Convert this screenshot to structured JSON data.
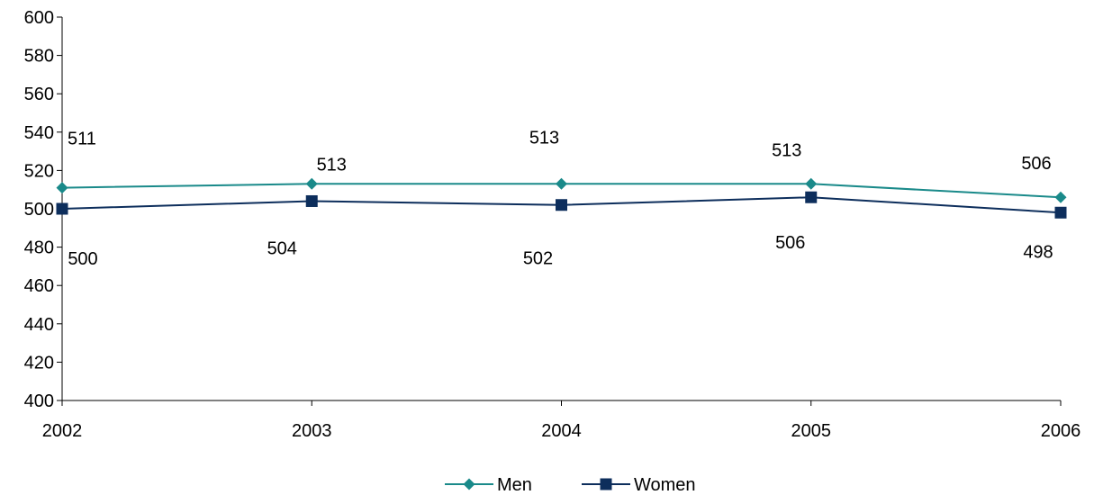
{
  "chart_data": {
    "type": "line",
    "title": "",
    "xlabel": "",
    "ylabel": "",
    "x": [
      "2002",
      "2003",
      "2004",
      "2005",
      "2006"
    ],
    "ylim": [
      400,
      600
    ],
    "yticks": [
      400,
      420,
      440,
      460,
      480,
      500,
      520,
      540,
      560,
      580,
      600
    ],
    "grid": false,
    "legend_position": "bottom",
    "series": [
      {
        "name": "Men",
        "values": [
          511,
          513,
          513,
          513,
          506
        ],
        "color": "#1a8a8a",
        "marker": "diamond"
      },
      {
        "name": "Women",
        "values": [
          500,
          504,
          502,
          506,
          498
        ],
        "color": "#0d2e5c",
        "marker": "square"
      }
    ]
  }
}
